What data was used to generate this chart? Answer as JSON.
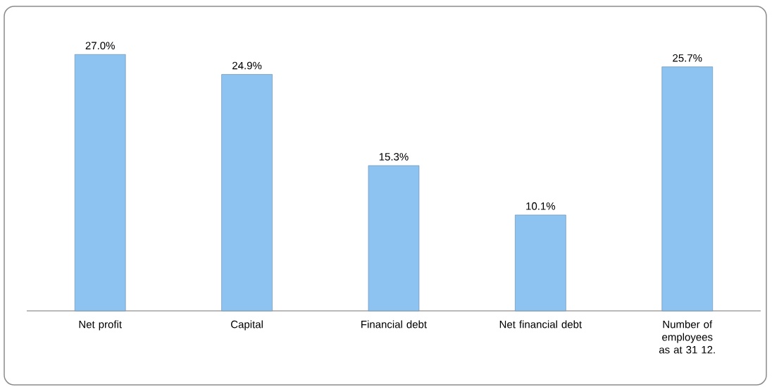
{
  "chart_data": {
    "type": "bar",
    "categories": [
      "Net profit",
      "Capital",
      "Financial debt",
      "Net financial debt",
      "Number of employees as at 31 12."
    ],
    "values": [
      27.0,
      24.9,
      15.3,
      10.1,
      25.7
    ],
    "value_labels": [
      "27.0%",
      "24.9%",
      "15.3%",
      "10.1%",
      "25.7%"
    ],
    "color": "#8dc3f0",
    "tick_labels": "x"
  }
}
